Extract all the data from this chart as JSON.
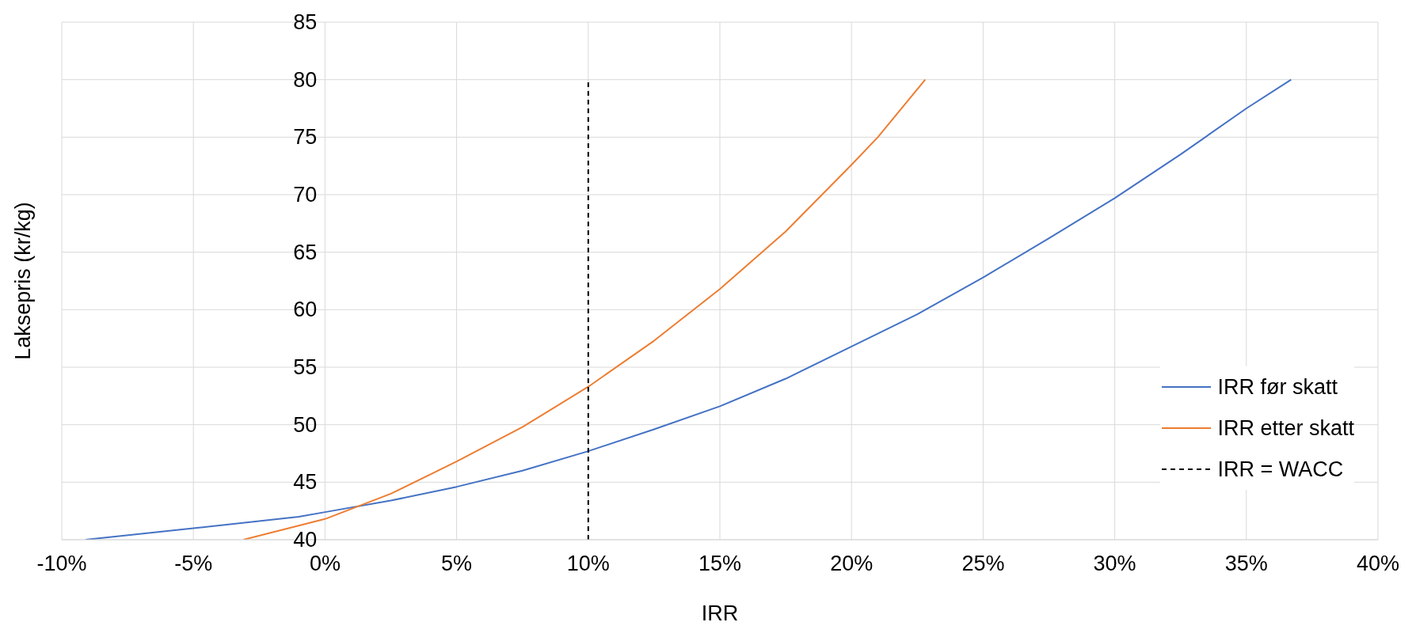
{
  "chart_data": {
    "type": "line",
    "xlabel": "IRR",
    "ylabel": "Laksepris (kr/kg)",
    "xlim": [
      -10,
      40
    ],
    "ylim": [
      40,
      85
    ],
    "xticks": [
      {
        "value": -10,
        "label": "-10%"
      },
      {
        "value": -5,
        "label": "-5%"
      },
      {
        "value": 0,
        "label": "0%"
      },
      {
        "value": 5,
        "label": "5%"
      },
      {
        "value": 10,
        "label": "10%"
      },
      {
        "value": 15,
        "label": "15%"
      },
      {
        "value": 20,
        "label": "20%"
      },
      {
        "value": 25,
        "label": "25%"
      },
      {
        "value": 30,
        "label": "30%"
      },
      {
        "value": 35,
        "label": "35%"
      },
      {
        "value": 40,
        "label": "40%"
      }
    ],
    "yticks": [
      40,
      45,
      50,
      55,
      60,
      65,
      70,
      75,
      80,
      85
    ],
    "grid": true,
    "legend": "right",
    "marker": "none",
    "series": [
      {
        "name": "IRR før skatt",
        "color": "#4472c4",
        "x": [
          -9.1,
          -5,
          -1,
          0,
          2.5,
          5,
          7.5,
          10,
          12.5,
          15,
          17.5,
          20,
          22.5,
          25,
          27.5,
          30,
          32.5,
          35,
          36.7
        ],
        "values": [
          40,
          41,
          42,
          42.4,
          43.4,
          44.6,
          46,
          47.7,
          49.6,
          51.6,
          54,
          56.8,
          59.6,
          62.8,
          66.2,
          69.7,
          73.5,
          77.5,
          80
        ]
      },
      {
        "name": "IRR etter skatt",
        "color": "#ed7d31",
        "x": [
          -3.1,
          0,
          2.5,
          5,
          7.5,
          10,
          12.5,
          15,
          17.5,
          20,
          21,
          22.8
        ],
        "values": [
          40,
          41.8,
          44,
          46.8,
          49.8,
          53.3,
          57.3,
          61.8,
          66.8,
          72.6,
          75,
          80
        ]
      },
      {
        "name": "IRR = WACC",
        "color": "#000000",
        "line_style": "dashed",
        "x": [
          10,
          10
        ],
        "values": [
          40,
          80
        ]
      }
    ]
  }
}
